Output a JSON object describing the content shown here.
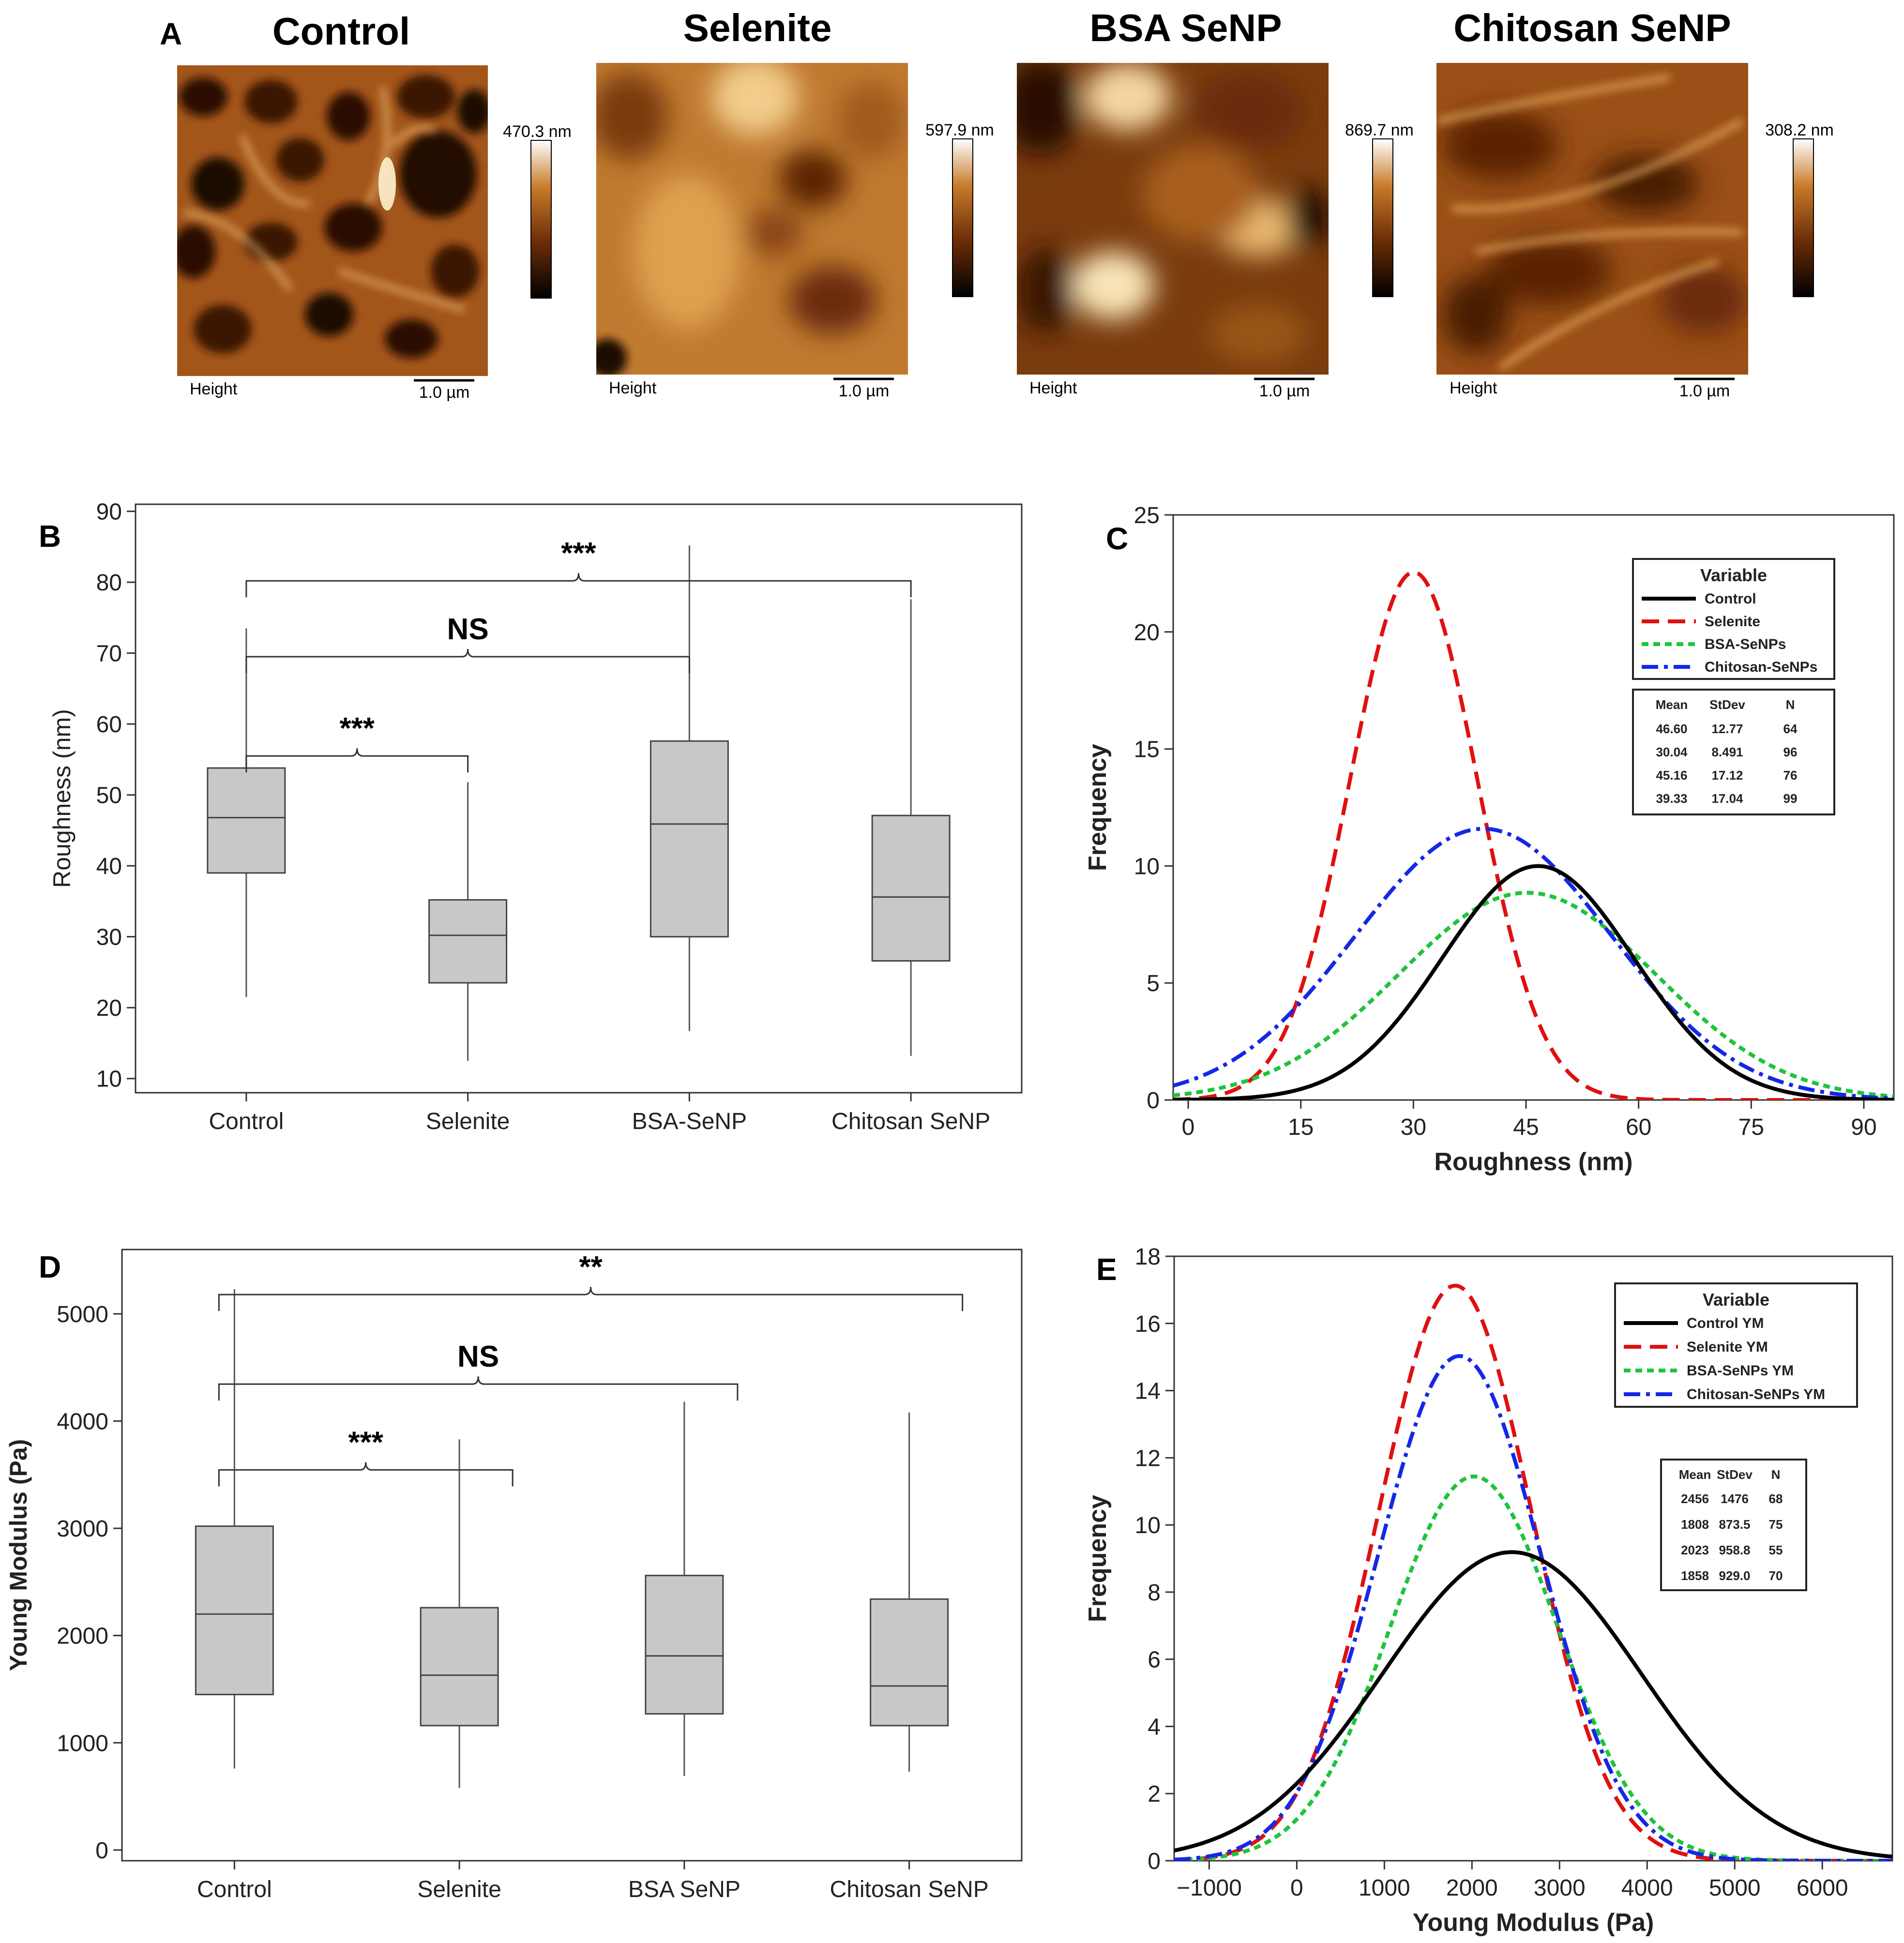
{
  "figure": {
    "panel_labels": [
      "A",
      "B",
      "C",
      "D",
      "E"
    ]
  },
  "panel_a": {
    "images": [
      {
        "title": "Control",
        "scale_max": "470.3 nm",
        "channel": "Height",
        "scalebar": "1.0 µm"
      },
      {
        "title": "Selenite",
        "scale_max": "597.9 nm",
        "channel": "Height",
        "scalebar": "1.0 µm"
      },
      {
        "title": "BSA SeNP",
        "scale_max": "869.7 nm",
        "channel": "Height",
        "scalebar": "1.0 µm"
      },
      {
        "title": "Chitosan SeNP",
        "scale_max": "308.2 nm",
        "channel": "Height",
        "scalebar": "1.0 µm"
      }
    ],
    "colors": {
      "dark": "#1a0800",
      "mid": "#8a4512",
      "light": "#d98a32",
      "highlight": "#fff2d0"
    }
  },
  "chart_data": [
    {
      "id": "B",
      "type": "box",
      "ylabel": "Roughness (nm)",
      "ylim": [
        8,
        91
      ],
      "yticks": [
        10,
        20,
        30,
        40,
        50,
        60,
        70,
        80,
        90
      ],
      "categories": [
        "Control",
        "Selenite",
        "BSA-SeNP",
        "Chitosan SeNP"
      ],
      "boxes": [
        {
          "min": 21.5,
          "q1": 39.0,
          "median": 46.8,
          "q3": 53.8,
          "max": 73.5
        },
        {
          "min": 12.5,
          "q1": 23.5,
          "median": 30.2,
          "q3": 35.2,
          "max": 51.8
        },
        {
          "min": 16.7,
          "q1": 30.0,
          "median": 45.9,
          "q3": 57.6,
          "max": 85.2
        },
        {
          "min": 13.2,
          "q1": 26.6,
          "median": 35.6,
          "q3": 47.1,
          "max": 77.6
        }
      ],
      "box_color": "#c8c8c8",
      "annotations": [
        {
          "from": 0,
          "to": 3,
          "label": "***",
          "level": 80.2
        },
        {
          "from": 0,
          "to": 2,
          "label": "NS",
          "level": 69.5
        },
        {
          "from": 0,
          "to": 1,
          "label": "***",
          "level": 55.5
        }
      ]
    },
    {
      "id": "C",
      "type": "line",
      "title": "",
      "xlabel": "Roughness (nm)",
      "ylabel": "Frequency",
      "xlim": [
        -2,
        94
      ],
      "ylim": [
        0,
        25
      ],
      "xticks": [
        0,
        15,
        30,
        45,
        60,
        75,
        90
      ],
      "yticks": [
        0,
        5,
        10,
        15,
        20,
        25
      ],
      "legend_title": "Variable",
      "series": [
        {
          "name": "Control",
          "mean": 46.6,
          "stdev": 12.77,
          "n": 64,
          "color": "#000000",
          "dash": "solid",
          "hist_width": 5
        },
        {
          "name": "Selenite",
          "mean": 30.04,
          "stdev": 8.491,
          "n": 96,
          "color": "#e01010",
          "dash": "dash",
          "hist_width": 5
        },
        {
          "name": "BSA-SeNPs",
          "mean": 45.16,
          "stdev": 17.12,
          "n": 76,
          "color": "#1ec43c",
          "dash": "short",
          "hist_width": 5
        },
        {
          "name": "Chitosan-SeNPs",
          "mean": 39.33,
          "stdev": 17.04,
          "n": 99,
          "color": "#1428e6",
          "dash": "dashdot",
          "hist_width": 5
        }
      ],
      "stats_header": [
        "Mean",
        "StDev",
        "N"
      ],
      "stats_rows": [
        [
          "46.60",
          "12.77",
          "64"
        ],
        [
          "30.04",
          "8.491",
          "96"
        ],
        [
          "45.16",
          "17.12",
          "76"
        ],
        [
          "39.33",
          "17.04",
          "99"
        ]
      ]
    },
    {
      "id": "D",
      "type": "box",
      "ylabel": "Young Modulus (Pa)",
      "ylim": [
        -100,
        5600
      ],
      "yticks": [
        0,
        1000,
        2000,
        3000,
        4000,
        5000
      ],
      "categories": [
        "Control",
        "Selenite",
        "BSA SeNP",
        "Chitosan SeNP"
      ],
      "boxes": [
        {
          "min": 760,
          "q1": 1450,
          "median": 2200,
          "q3": 3020,
          "max": 5230
        },
        {
          "min": 580,
          "q1": 1160,
          "median": 1630,
          "q3": 2260,
          "max": 3830
        },
        {
          "min": 690,
          "q1": 1270,
          "median": 1810,
          "q3": 2560,
          "max": 4180
        },
        {
          "min": 730,
          "q1": 1160,
          "median": 1530,
          "q3": 2340,
          "max": 4080
        }
      ],
      "box_color": "#c8c8c8",
      "annotations": [
        {
          "from": 0,
          "to": 3,
          "label": "**",
          "level": 5180
        },
        {
          "from": 0,
          "to": 2,
          "label": "NS",
          "level": 4345
        },
        {
          "from": 0,
          "to": 1,
          "label": "***",
          "level": 3545
        }
      ]
    },
    {
      "id": "E",
      "type": "line",
      "title": "",
      "xlabel": "Young Modulus (Pa)",
      "ylabel": "Frequency",
      "xlim": [
        -1400,
        6800
      ],
      "ylim": [
        0,
        18
      ],
      "xticks": [
        -1000,
        0,
        1000,
        2000,
        3000,
        4000,
        5000,
        6000
      ],
      "yticks": [
        0,
        2,
        4,
        6,
        8,
        10,
        12,
        14,
        16,
        18
      ],
      "legend_title": "Variable",
      "series": [
        {
          "name": "Control YM",
          "mean": 2456,
          "stdev": 1476,
          "n": 68,
          "color": "#000000",
          "dash": "solid",
          "hist_width": 500
        },
        {
          "name": "Selenite YM",
          "mean": 1808,
          "stdev": 873.5,
          "n": 75,
          "color": "#e01010",
          "dash": "dash",
          "hist_width": 500
        },
        {
          "name": "BSA-SeNPs YM",
          "mean": 2023,
          "stdev": 958.8,
          "n": 55,
          "color": "#1ec43c",
          "dash": "short",
          "hist_width": 500
        },
        {
          "name": "Chitosan-SeNPs YM",
          "mean": 1858,
          "stdev": 929.0,
          "n": 70,
          "color": "#1428e6",
          "dash": "dashdot",
          "hist_width": 500
        }
      ],
      "stats_header": [
        "Mean",
        "StDev",
        "N"
      ],
      "stats_rows": [
        [
          "2456",
          "1476",
          "68"
        ],
        [
          "1808",
          "873.5",
          "75"
        ],
        [
          "2023",
          "958.8",
          "55"
        ],
        [
          "1858",
          "929.0",
          "70"
        ]
      ]
    }
  ]
}
